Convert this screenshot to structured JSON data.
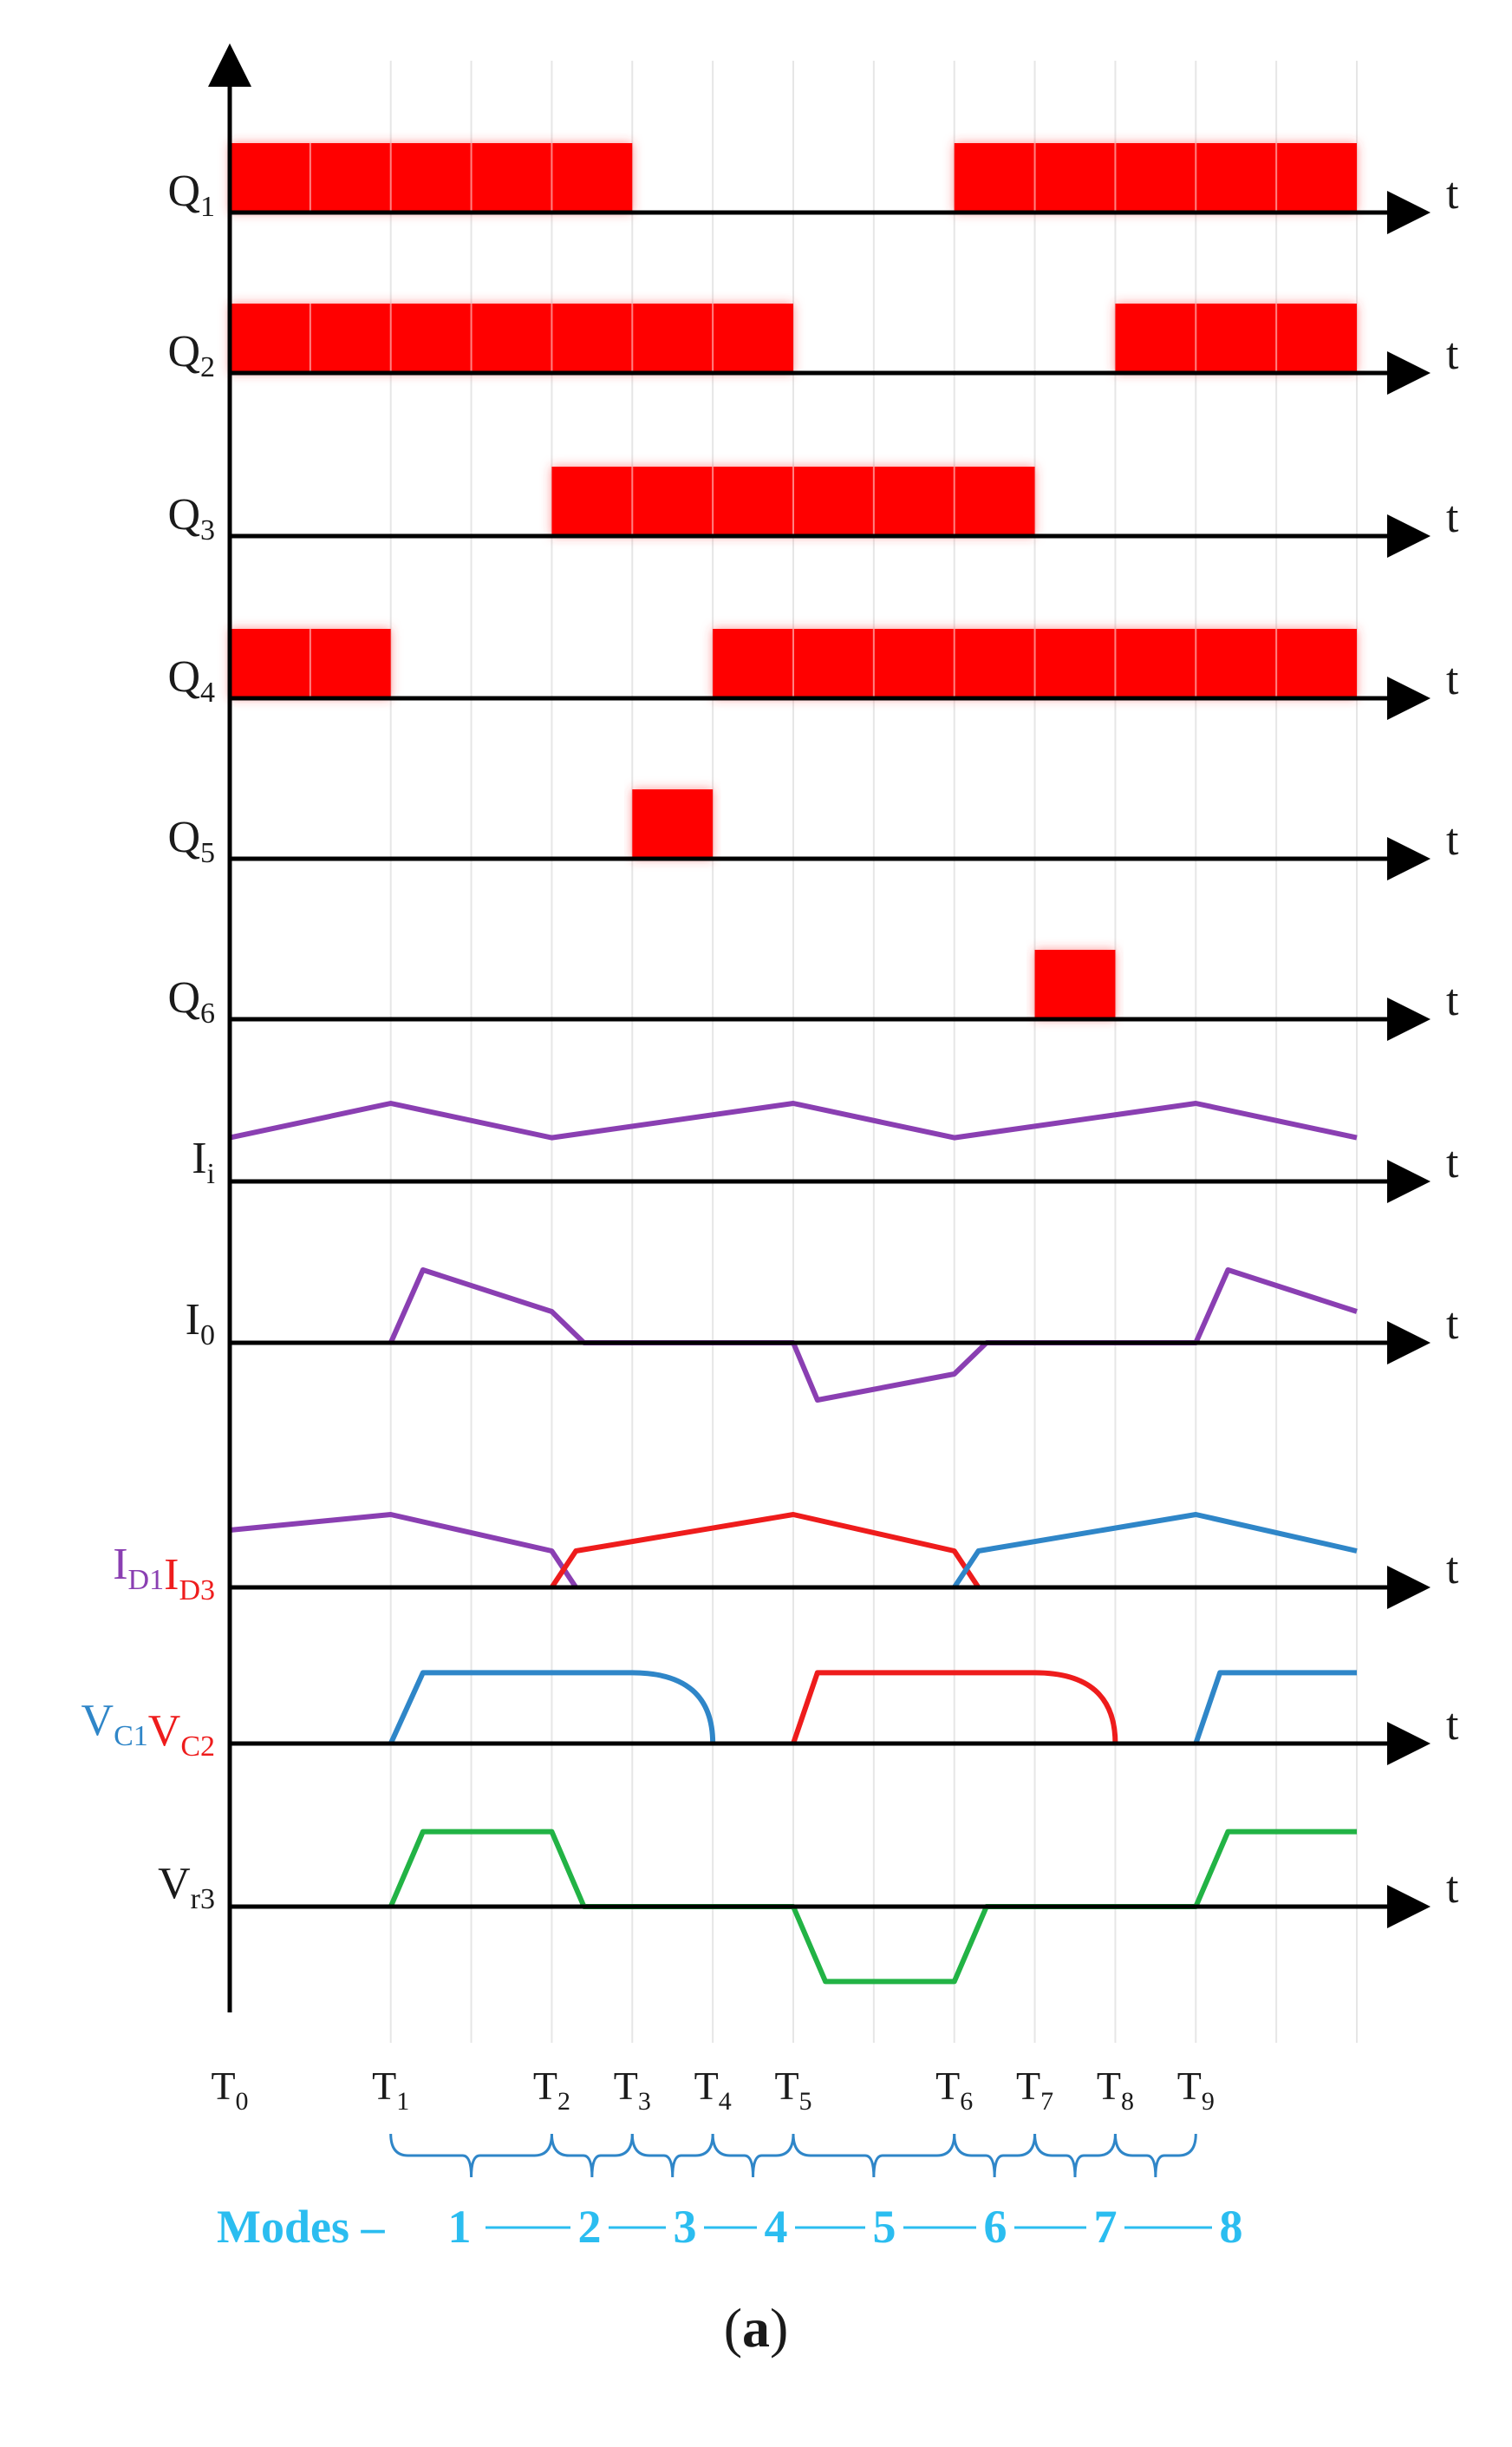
{
  "colors": {
    "axis": "#000000",
    "pulse": "#ff0000",
    "purple": "#8a3fb2",
    "red": "#ee1c1c",
    "blue": "#2f86c8",
    "green": "#22b345",
    "modes": "#2bbdf0",
    "grid": "#e6e6e6"
  },
  "time_axis_symbol": "t",
  "time_markers": [
    {
      "main": "T",
      "sub": "0"
    },
    {
      "main": "T",
      "sub": "1"
    },
    {
      "main": "T",
      "sub": "2"
    },
    {
      "main": "T",
      "sub": "3"
    },
    {
      "main": "T",
      "sub": "4"
    },
    {
      "main": "T",
      "sub": "5"
    },
    {
      "main": "T",
      "sub": "6"
    },
    {
      "main": "T",
      "sub": "7"
    },
    {
      "main": "T",
      "sub": "8"
    },
    {
      "main": "T",
      "sub": "9"
    }
  ],
  "switch_signals": [
    {
      "id": "q1",
      "main": "Q",
      "sub": "1",
      "on": [
        [
          0,
          5
        ],
        [
          9,
          14
        ]
      ]
    },
    {
      "id": "q2",
      "main": "Q",
      "sub": "2",
      "on": [
        [
          0,
          7
        ],
        [
          11,
          14
        ]
      ]
    },
    {
      "id": "q3",
      "main": "Q",
      "sub": "3",
      "on": [
        [
          4,
          10
        ]
      ]
    },
    {
      "id": "q4",
      "main": "Q",
      "sub": "4",
      "on": [
        [
          0,
          2
        ],
        [
          6,
          14
        ]
      ]
    },
    {
      "id": "q5",
      "main": "Q",
      "sub": "5",
      "on": [
        [
          5,
          6
        ]
      ]
    },
    {
      "id": "q6",
      "main": "Q",
      "sub": "6",
      "on": [
        [
          10,
          11
        ]
      ]
    }
  ],
  "analog_signals": [
    {
      "id": "ii",
      "main": "I",
      "sub": "i",
      "traces": [
        {
          "color": "purple",
          "points": [
            [
              0,
              0.42
            ],
            [
              2,
              0.75
            ],
            [
              4,
              0.42
            ],
            [
              7,
              0.75
            ],
            [
              9,
              0.42
            ],
            [
              12,
              0.75
            ],
            [
              14,
              0.42
            ]
          ]
        }
      ]
    },
    {
      "id": "i0",
      "main": "I",
      "sub": "0",
      "traces": [
        {
          "color": "purple",
          "points": [
            [
              2,
              0
            ],
            [
              2.4,
              0.7
            ],
            [
              4,
              0.3
            ],
            [
              4.4,
              0
            ],
            [
              7,
              0
            ],
            [
              7.3,
              -0.55
            ],
            [
              9,
              -0.3
            ],
            [
              9.4,
              0
            ],
            [
              12,
              0
            ],
            [
              12.4,
              0.7
            ],
            [
              14,
              0.3
            ]
          ]
        }
      ]
    },
    {
      "id": "id",
      "label_parts": [
        {
          "main": "I",
          "sub": "D1",
          "color": "purple"
        },
        {
          "main": "I",
          "sub": "D3",
          "color": "red"
        }
      ],
      "traces": [
        {
          "color": "purple",
          "points": [
            [
              0,
              0.55
            ],
            [
              2,
              0.7
            ],
            [
              4,
              0.35
            ],
            [
              4.3,
              0
            ]
          ]
        },
        {
          "color": "red",
          "points": [
            [
              4,
              0
            ],
            [
              4.3,
              0.35
            ],
            [
              7,
              0.7
            ],
            [
              9,
              0.35
            ],
            [
              9.3,
              0
            ]
          ]
        },
        {
          "color": "blue",
          "points": [
            [
              9,
              0
            ],
            [
              9.3,
              0.35
            ],
            [
              12,
              0.7
            ],
            [
              14,
              0.35
            ]
          ]
        }
      ]
    },
    {
      "id": "vc",
      "label_parts": [
        {
          "main": "V",
          "sub": "C1",
          "color": "blue"
        },
        {
          "main": "V",
          "sub": "C2",
          "color": "red"
        }
      ],
      "traces": [
        {
          "color": "blue",
          "curve": "fall",
          "points": [
            [
              2,
              0
            ],
            [
              2.4,
              0.68
            ],
            [
              5,
              0.68
            ],
            [
              6,
              0
            ]
          ]
        },
        {
          "color": "red",
          "curve": "fall",
          "points": [
            [
              7,
              0
            ],
            [
              7.3,
              0.68
            ],
            [
              10,
              0.68
            ],
            [
              11,
              0
            ]
          ]
        },
        {
          "color": "blue",
          "points": [
            [
              12,
              0
            ],
            [
              12.3,
              0.68
            ],
            [
              14,
              0.68
            ]
          ]
        }
      ]
    },
    {
      "id": "vr3",
      "main": "V",
      "sub": "r3",
      "traces": [
        {
          "color": "green",
          "points": [
            [
              2,
              0
            ],
            [
              2.4,
              0.72
            ],
            [
              4,
              0.72
            ],
            [
              4.4,
              0
            ],
            [
              7,
              0
            ],
            [
              7.4,
              -0.72
            ],
            [
              9,
              -0.72
            ],
            [
              9.4,
              0
            ],
            [
              12,
              0
            ],
            [
              12.4,
              0.72
            ],
            [
              14,
              0.72
            ]
          ]
        }
      ]
    }
  ],
  "modes_label": "Modes –",
  "mode_numbers": [
    "1",
    "2",
    "3",
    "4",
    "5",
    "6",
    "7",
    "8"
  ],
  "caption_letter": "a"
}
